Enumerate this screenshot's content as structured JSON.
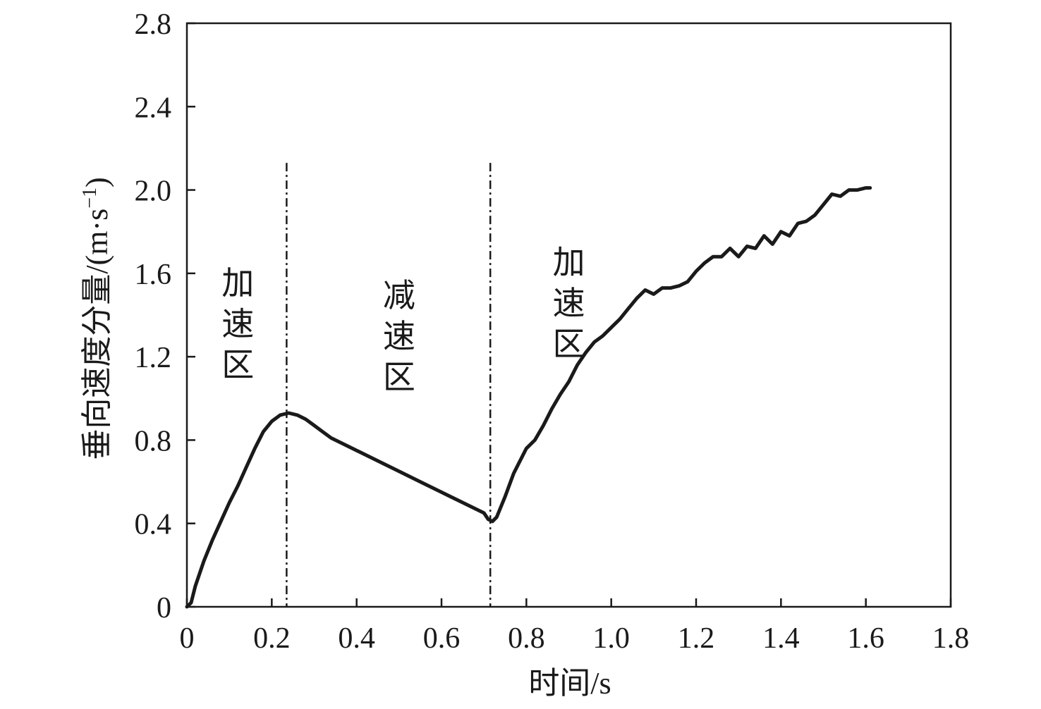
{
  "chart_data": {
    "type": "line",
    "xlabel": "时间/s",
    "ylabel_main": "垂向速度分量/(m·s",
    "ylabel_sup": "−1",
    "ylabel_close": ")",
    "xlim": [
      0,
      1.8
    ],
    "ylim": [
      0,
      2.8
    ],
    "xticks": [
      0,
      0.2,
      0.4,
      0.6,
      0.8,
      1.0,
      1.2,
      1.4,
      1.6,
      1.8
    ],
    "xtick_labels": [
      "0",
      "0.2",
      "0.4",
      "0.6",
      "0.8",
      "1.0",
      "1.2",
      "1.4",
      "1.6",
      "1.8"
    ],
    "yticks": [
      0,
      0.4,
      0.8,
      1.2,
      1.6,
      2.0,
      2.4,
      2.8
    ],
    "ytick_labels": [
      "0",
      "0.4",
      "0.8",
      "1.2",
      "1.6",
      "2.0",
      "2.4",
      "2.8"
    ],
    "grid": false,
    "legend": "none",
    "colors": {
      "line": "#1a1a1a",
      "axis": "#1a1a1a",
      "background": "#ffffff"
    },
    "series": [
      {
        "x": [
          0.0,
          0.01,
          0.02,
          0.04,
          0.06,
          0.08,
          0.1,
          0.12,
          0.14,
          0.16,
          0.18,
          0.2,
          0.22,
          0.24,
          0.26,
          0.28,
          0.3,
          0.32,
          0.34,
          0.36,
          0.4,
          0.45,
          0.5,
          0.55,
          0.6,
          0.65,
          0.7,
          0.71,
          0.72,
          0.73,
          0.75,
          0.77,
          0.8,
          0.82,
          0.84,
          0.86,
          0.88,
          0.9,
          0.92,
          0.94,
          0.96,
          0.98,
          1.0,
          1.02,
          1.04,
          1.06,
          1.08,
          1.1,
          1.12,
          1.14,
          1.16,
          1.18,
          1.2,
          1.22,
          1.24,
          1.26,
          1.28,
          1.3,
          1.32,
          1.34,
          1.36,
          1.38,
          1.4,
          1.42,
          1.44,
          1.46,
          1.48,
          1.5,
          1.52,
          1.54,
          1.56,
          1.58,
          1.6,
          1.61
        ],
        "values": [
          0.0,
          0.02,
          0.1,
          0.22,
          0.32,
          0.41,
          0.5,
          0.58,
          0.67,
          0.76,
          0.84,
          0.89,
          0.92,
          0.93,
          0.92,
          0.9,
          0.87,
          0.84,
          0.81,
          0.79,
          0.75,
          0.7,
          0.65,
          0.6,
          0.55,
          0.5,
          0.45,
          0.42,
          0.41,
          0.43,
          0.53,
          0.64,
          0.76,
          0.8,
          0.87,
          0.95,
          1.02,
          1.08,
          1.16,
          1.22,
          1.27,
          1.3,
          1.34,
          1.38,
          1.43,
          1.48,
          1.52,
          1.5,
          1.53,
          1.53,
          1.54,
          1.56,
          1.61,
          1.65,
          1.68,
          1.68,
          1.72,
          1.68,
          1.73,
          1.72,
          1.78,
          1.74,
          1.8,
          1.78,
          1.84,
          1.85,
          1.88,
          1.93,
          1.98,
          1.97,
          2.0,
          2.0,
          2.01,
          2.01
        ]
      }
    ],
    "vlines": [
      0.235,
      0.715
    ],
    "annotations": [
      {
        "text": "加速区",
        "x": 0.12,
        "y": 1.5
      },
      {
        "text": "减速区",
        "x": 0.5,
        "y": 1.44
      },
      {
        "text": "加速区",
        "x": 0.9,
        "y": 1.6
      }
    ]
  }
}
